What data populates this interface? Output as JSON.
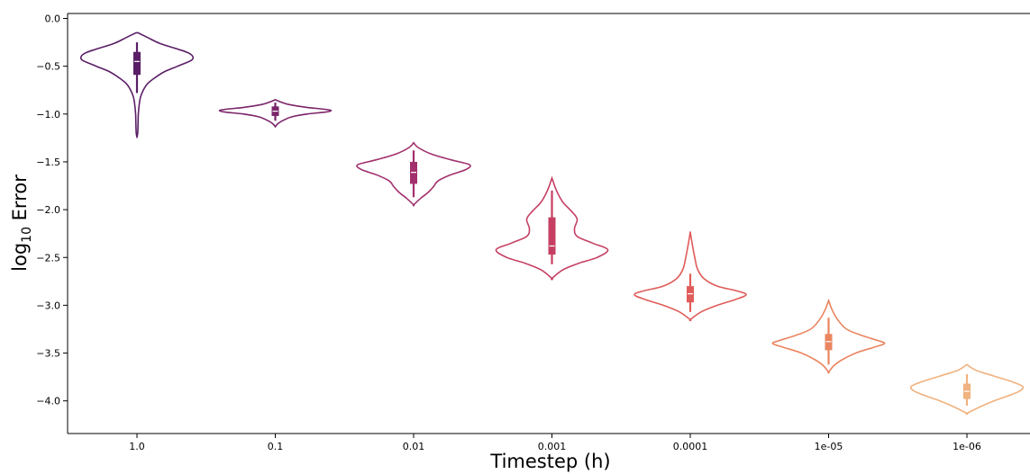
{
  "chart_data": {
    "type": "violin",
    "title": "",
    "xlabel": "Timestep (h)",
    "ylabel_base": "log",
    "ylabel_sub": "10",
    "ylabel_rest": " Error",
    "categories": [
      "1.0",
      "0.1",
      "0.01",
      "0.001",
      "0.0001",
      "1e-05",
      "1e-06"
    ],
    "colors": [
      "#5a1e66",
      "#7b2469",
      "#a1306d",
      "#c63f63",
      "#e05c5a",
      "#ea8560",
      "#f0b27f"
    ],
    "ylim": [
      -4.35,
      0.05
    ],
    "yticks": [
      0.0,
      -0.5,
      -1.0,
      -1.5,
      -2.0,
      -2.5,
      -3.0,
      -3.5,
      -4.0
    ],
    "ytick_labels": [
      "0.0",
      "−0.5",
      "−1.0",
      "−1.5",
      "−2.0",
      "−2.5",
      "−3.0",
      "−3.5",
      "−4.0"
    ],
    "violins": [
      {
        "category": "1.0",
        "ymax": -0.15,
        "ymin": -1.24,
        "whisker": [
          -0.25,
          -0.78
        ],
        "q1": -0.59,
        "q3": -0.35,
        "median": -0.45,
        "profile": [
          [
            -0.15,
            0.01
          ],
          [
            -0.2,
            0.12
          ],
          [
            -0.26,
            0.25
          ],
          [
            -0.32,
            0.45
          ],
          [
            -0.36,
            0.57
          ],
          [
            -0.4,
            0.62
          ],
          [
            -0.44,
            0.6
          ],
          [
            -0.5,
            0.45
          ],
          [
            -0.56,
            0.3
          ],
          [
            -0.62,
            0.2
          ],
          [
            -0.68,
            0.12
          ],
          [
            -0.75,
            0.07
          ],
          [
            -0.82,
            0.04
          ],
          [
            -0.9,
            0.025
          ],
          [
            -1.0,
            0.015
          ],
          [
            -1.1,
            0.012
          ],
          [
            -1.2,
            0.008
          ],
          [
            -1.24,
            0.0
          ]
        ]
      },
      {
        "category": "0.1",
        "ymax": -0.85,
        "ymin": -1.13,
        "whisker": [
          -0.88,
          -1.07
        ],
        "q1": -1.02,
        "q3": -0.92,
        "median": -0.97,
        "profile": [
          [
            -0.85,
            0.0
          ],
          [
            -0.87,
            0.05
          ],
          [
            -0.9,
            0.15
          ],
          [
            -0.93,
            0.35
          ],
          [
            -0.95,
            0.55
          ],
          [
            -0.965,
            0.62
          ],
          [
            -0.98,
            0.55
          ],
          [
            -1.0,
            0.35
          ],
          [
            -1.03,
            0.18
          ],
          [
            -1.07,
            0.08
          ],
          [
            -1.1,
            0.03
          ],
          [
            -1.13,
            0.0
          ]
        ]
      },
      {
        "category": "0.01",
        "ymax": -1.3,
        "ymin": -1.95,
        "whisker": [
          -1.38,
          -1.87
        ],
        "q1": -1.73,
        "q3": -1.5,
        "median": -1.61,
        "profile": [
          [
            -1.3,
            0.0
          ],
          [
            -1.35,
            0.05
          ],
          [
            -1.42,
            0.2
          ],
          [
            -1.48,
            0.42
          ],
          [
            -1.53,
            0.62
          ],
          [
            -1.58,
            0.58
          ],
          [
            -1.64,
            0.4
          ],
          [
            -1.7,
            0.27
          ],
          [
            -1.76,
            0.22
          ],
          [
            -1.82,
            0.16
          ],
          [
            -1.88,
            0.08
          ],
          [
            -1.95,
            0.0
          ]
        ]
      },
      {
        "category": "0.001",
        "ymax": -1.67,
        "ymin": -2.72,
        "whisker": [
          -1.8,
          -2.57
        ],
        "q1": -2.47,
        "q3": -2.08,
        "median": -2.38,
        "profile": [
          [
            -1.67,
            0.0
          ],
          [
            -1.8,
            0.05
          ],
          [
            -1.92,
            0.12
          ],
          [
            -2.02,
            0.22
          ],
          [
            -2.1,
            0.28
          ],
          [
            -2.2,
            0.25
          ],
          [
            -2.28,
            0.28
          ],
          [
            -2.35,
            0.45
          ],
          [
            -2.42,
            0.62
          ],
          [
            -2.5,
            0.5
          ],
          [
            -2.56,
            0.3
          ],
          [
            -2.63,
            0.12
          ],
          [
            -2.72,
            0.0
          ]
        ]
      },
      {
        "category": "0.0001",
        "ymax": -2.23,
        "ymin": -3.15,
        "whisker": [
          -2.67,
          -3.07
        ],
        "q1": -2.97,
        "q3": -2.8,
        "median": -2.88,
        "profile": [
          [
            -2.23,
            0.0
          ],
          [
            -2.35,
            0.02
          ],
          [
            -2.5,
            0.05
          ],
          [
            -2.62,
            0.08
          ],
          [
            -2.72,
            0.15
          ],
          [
            -2.8,
            0.3
          ],
          [
            -2.85,
            0.52
          ],
          [
            -2.89,
            0.62
          ],
          [
            -2.94,
            0.5
          ],
          [
            -3.0,
            0.3
          ],
          [
            -3.07,
            0.12
          ],
          [
            -3.15,
            0.0
          ]
        ]
      },
      {
        "category": "1e-05",
        "ymax": -2.95,
        "ymin": -3.7,
        "whisker": [
          -3.13,
          -3.62
        ],
        "q1": -3.47,
        "q3": -3.3,
        "median": -3.38,
        "profile": [
          [
            -2.95,
            0.0
          ],
          [
            -3.05,
            0.04
          ],
          [
            -3.15,
            0.1
          ],
          [
            -3.25,
            0.2
          ],
          [
            -3.32,
            0.38
          ],
          [
            -3.37,
            0.55
          ],
          [
            -3.4,
            0.62
          ],
          [
            -3.44,
            0.5
          ],
          [
            -3.5,
            0.3
          ],
          [
            -3.57,
            0.15
          ],
          [
            -3.63,
            0.06
          ],
          [
            -3.7,
            0.0
          ]
        ]
      },
      {
        "category": "1e-06",
        "ymax": -3.62,
        "ymin": -4.13,
        "whisker": [
          -3.72,
          -4.05
        ],
        "q1": -3.98,
        "q3": -3.82,
        "median": -3.9,
        "profile": [
          [
            -3.62,
            0.0
          ],
          [
            -3.68,
            0.1
          ],
          [
            -3.74,
            0.3
          ],
          [
            -3.8,
            0.5
          ],
          [
            -3.85,
            0.62
          ],
          [
            -3.9,
            0.58
          ],
          [
            -3.95,
            0.45
          ],
          [
            -4.0,
            0.3
          ],
          [
            -4.06,
            0.15
          ],
          [
            -4.13,
            0.0
          ]
        ]
      }
    ]
  }
}
